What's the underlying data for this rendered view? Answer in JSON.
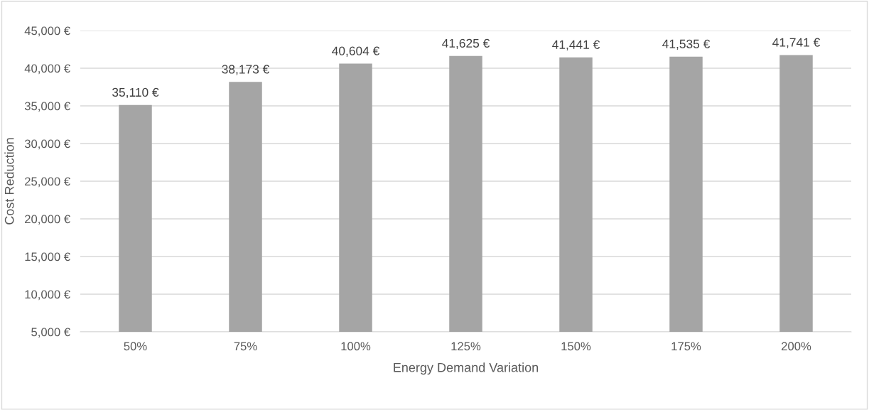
{
  "chart_data": {
    "type": "bar",
    "xlabel": "Energy Demand Variation",
    "ylabel": "Cost Reduction",
    "categories": [
      "50%",
      "75%",
      "100%",
      "125%",
      "150%",
      "175%",
      "200%"
    ],
    "values": [
      35110,
      38173,
      40604,
      41625,
      41441,
      41535,
      41741
    ],
    "value_labels": [
      "35,110 €",
      "38,173 €",
      "40,604 €",
      "41,625 €",
      "41,441 €",
      "41,535 €",
      "41,741 €"
    ],
    "color": "#a5a5a5",
    "ylim": [
      5000,
      45000
    ],
    "yticks": [
      {
        "value": 5000,
        "label": "5,000 €"
      },
      {
        "value": 10000,
        "label": "10,000 €"
      },
      {
        "value": 15000,
        "label": "15,000 €"
      },
      {
        "value": 20000,
        "label": "20,000 €"
      },
      {
        "value": 25000,
        "label": "25,000 €"
      },
      {
        "value": 30000,
        "label": "30,000 €"
      },
      {
        "value": 35000,
        "label": "35,000 €"
      },
      {
        "value": 40000,
        "label": "40,000 €"
      },
      {
        "value": 45000,
        "label": "45,000 €"
      }
    ],
    "grid": "y"
  }
}
